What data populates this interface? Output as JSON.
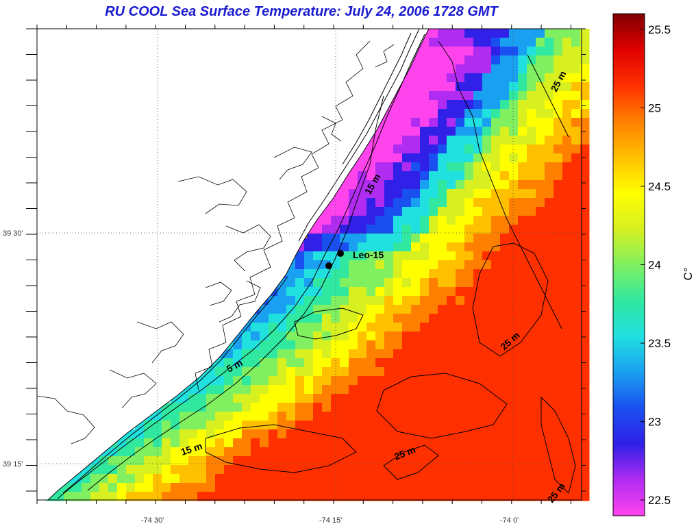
{
  "title": "RU COOL  Sea Surface Temperature:  July 24, 2006 1728 GMT",
  "colorbar": {
    "unit_label": "C°",
    "ticks": [
      "25.5",
      "25",
      "24.5",
      "24",
      "23.5",
      "23",
      "22.5"
    ],
    "range": [
      22.4,
      25.6
    ],
    "colors": [
      "#ff44ee",
      "#b02cf0",
      "#3020e8",
      "#1a50f0",
      "#1aa0f0",
      "#20e0e0",
      "#30e8a0",
      "#80f060",
      "#d8f020",
      "#ffff00",
      "#ffc000",
      "#ff8000",
      "#ff3000",
      "#e00000",
      "#800000"
    ]
  },
  "axes": {
    "lat_labels": [
      "39 30'",
      "39 15'"
    ],
    "lon_labels": [
      "-74 30'",
      "-74 15'",
      "-74 0'"
    ]
  },
  "contours": {
    "labels": [
      "5 m",
      "15 m",
      "15 m",
      "25 m",
      "25 m",
      "25 m",
      "25 m"
    ]
  },
  "stations": {
    "label": "Leo-15"
  }
}
